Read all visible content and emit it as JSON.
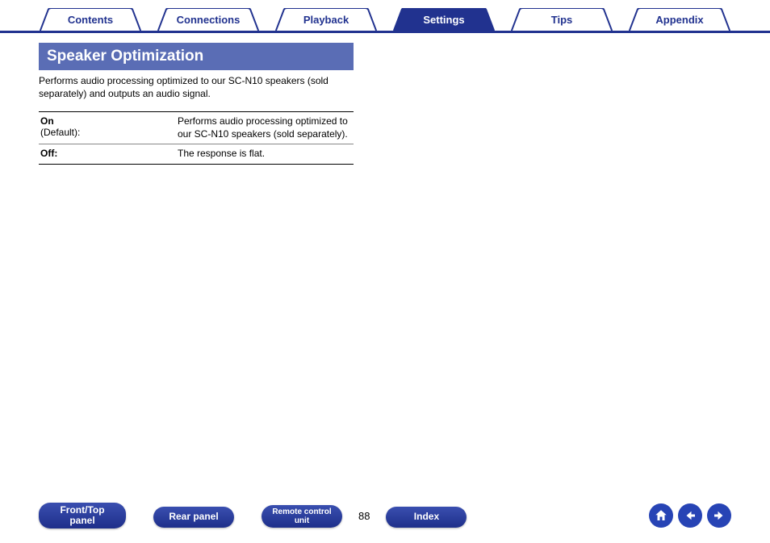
{
  "colors": {
    "brand_primary": "#21328f",
    "tab_inactive_border": "#21328f",
    "section_header_bg": "#5a6db5",
    "pill_gradient_top": "#3a4fb0",
    "pill_gradient_bottom": "#1e2f8a",
    "circle_btn": "#2744b5",
    "text": "#000000",
    "background": "#ffffff"
  },
  "tabs": [
    {
      "label": "Contents",
      "active": false
    },
    {
      "label": "Connections",
      "active": false
    },
    {
      "label": "Playback",
      "active": false
    },
    {
      "label": "Settings",
      "active": true
    },
    {
      "label": "Tips",
      "active": false
    },
    {
      "label": "Appendix",
      "active": false
    }
  ],
  "section": {
    "title": "Speaker Optimization",
    "description": "Performs audio processing optimized to our SC-N10 speakers (sold separately) and outputs an audio signal.",
    "rows": [
      {
        "option": "On",
        "default_text": "(Default):",
        "description": "Performs audio processing optimized to our SC-N10 speakers (sold separately)."
      },
      {
        "option": "Off:",
        "default_text": "",
        "description": "The response is flat."
      }
    ]
  },
  "bottom_nav": {
    "front_top": "Front/Top panel",
    "rear": "Rear panel",
    "remote": "Remote control unit",
    "index": "Index",
    "page": "88"
  }
}
